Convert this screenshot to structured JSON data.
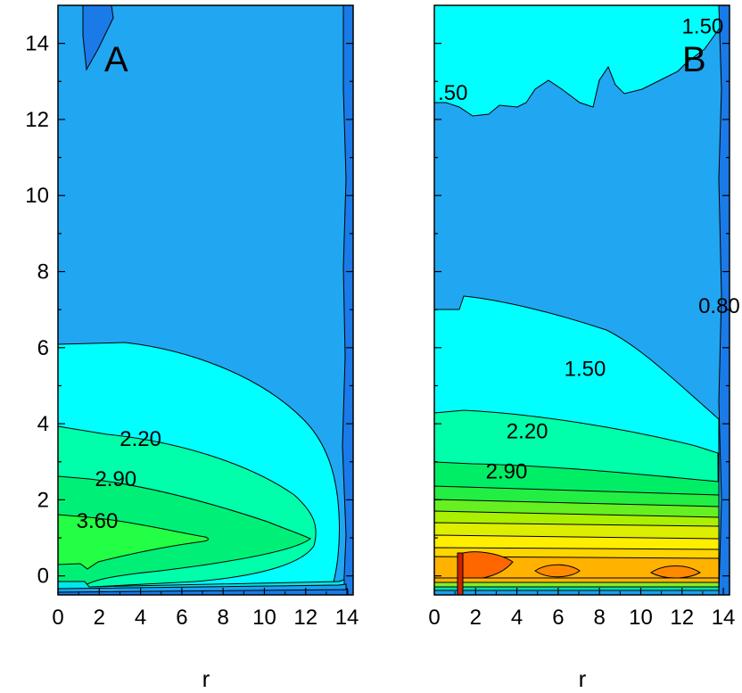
{
  "chart_data": [
    {
      "type": "contour",
      "panel_label": "A",
      "xlabel": "r",
      "ylabel": "",
      "xlim": [
        0,
        14.3
      ],
      "ylim": [
        -0.5,
        15
      ],
      "x_ticks": [
        "0",
        "2",
        "4",
        "6",
        "8",
        "10",
        "12",
        "14"
      ],
      "y_ticks": [
        "0",
        "2",
        "4",
        "6",
        "8",
        "10",
        "12",
        "14"
      ],
      "colors": {
        "background": "#21a6f2",
        "level_0_80": "#1a7ae8",
        "level_1_50": "#00ffff",
        "level_2_20": "#00ffaa",
        "level_2_90": "#00f077",
        "level_3_60": "#22ff44"
      },
      "contour_labels": [
        {
          "text": "2.20",
          "x": 4.0,
          "y": 3.6
        },
        {
          "text": "2.90",
          "x": 2.8,
          "y": 2.55
        },
        {
          "text": "3.60",
          "x": 1.9,
          "y": 1.45
        }
      ]
    },
    {
      "type": "contour",
      "panel_label": "B",
      "xlabel": "r",
      "ylabel": "",
      "xlim": [
        0,
        14.3
      ],
      "ylim": [
        -0.5,
        15
      ],
      "x_ticks": [
        "0",
        "2",
        "4",
        "6",
        "8",
        "10",
        "12",
        "14"
      ],
      "y_ticks": [],
      "colors": {
        "background": "#21a6f2",
        "level_1_50": "#00ffff",
        "level_2_20": "#00ffaa",
        "level_2_90": "#00ee66",
        "level_high": "#ffd500",
        "level_peak": "#ff6600"
      },
      "contour_labels": [
        {
          "text": "1.50",
          "x": 13.0,
          "y": 14.45
        },
        {
          "text": ".50",
          "x": 0.9,
          "y": 12.7
        },
        {
          "text": "0.80",
          "x": 13.8,
          "y": 7.1
        },
        {
          "text": "1.50",
          "x": 7.3,
          "y": 5.45
        },
        {
          "text": "2.20",
          "x": 4.5,
          "y": 3.8
        },
        {
          "text": "2.90",
          "x": 3.5,
          "y": 2.75
        }
      ]
    }
  ]
}
